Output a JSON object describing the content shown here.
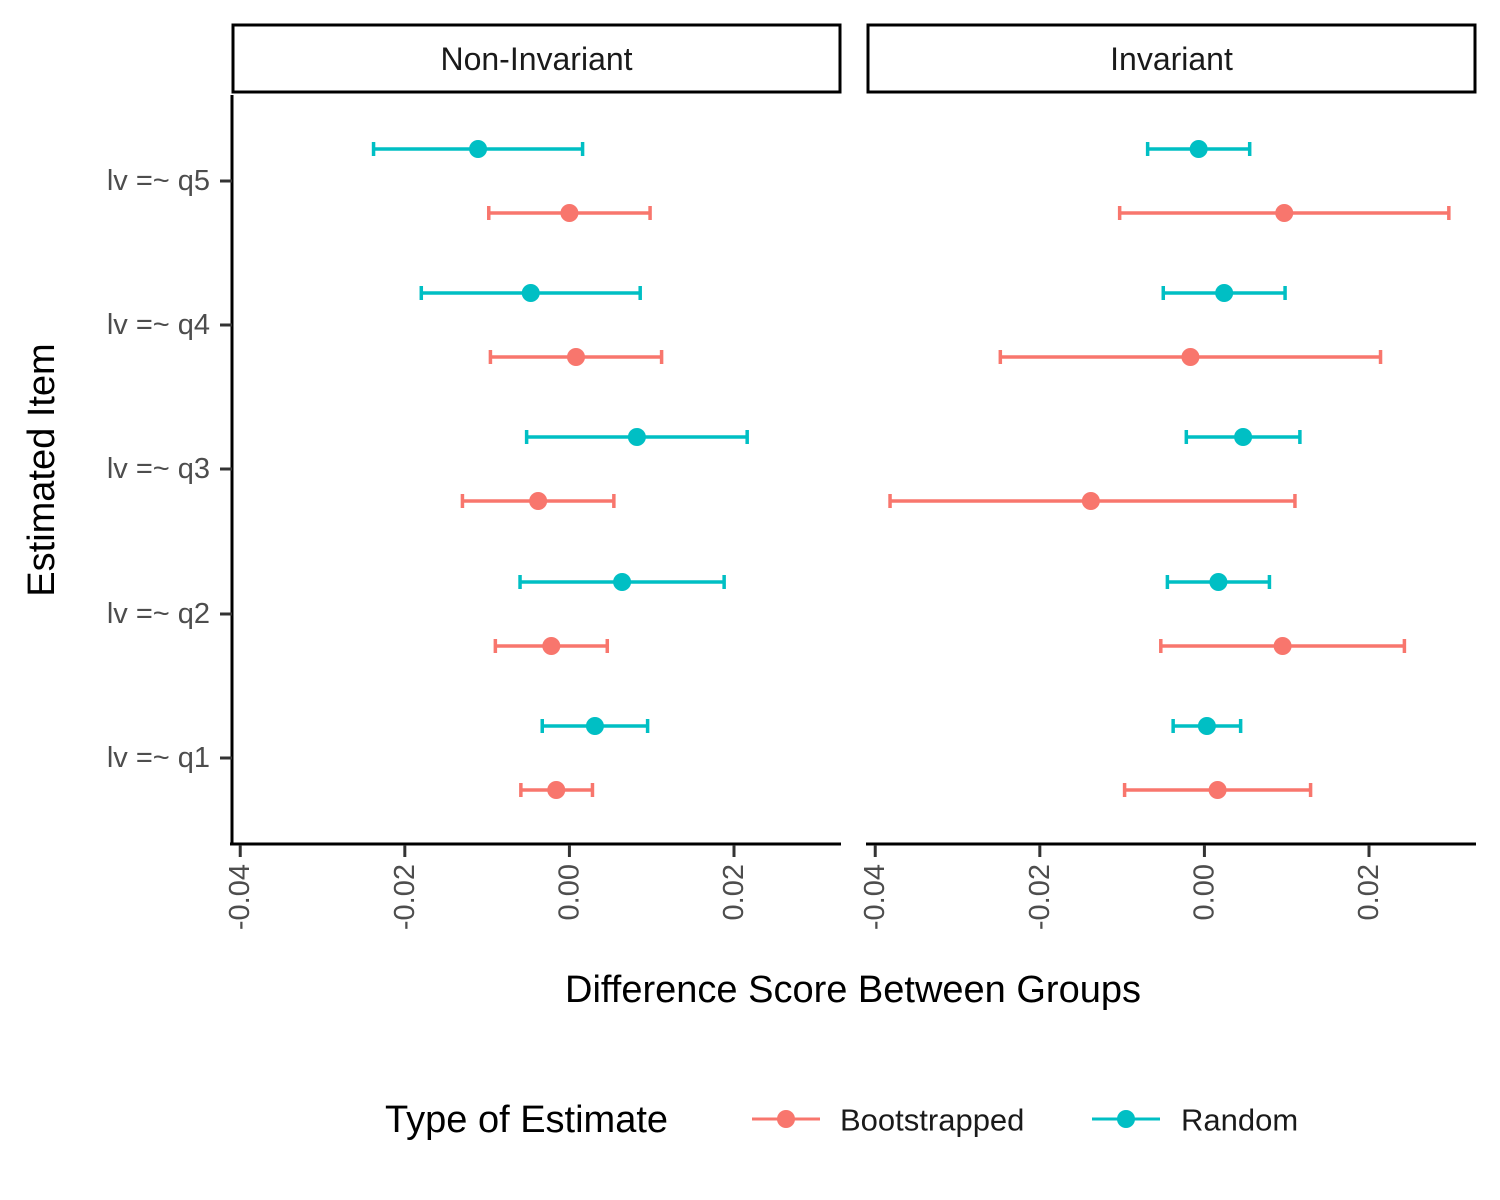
{
  "chart_data": {
    "type": "scatter",
    "subtype": "pointrange",
    "facets": [
      "Non-Invariant",
      "Invariant"
    ],
    "categories": [
      "lv =~ q1",
      "lv =~ q2",
      "lv =~ q3",
      "lv =~ q4",
      "lv =~ q5"
    ],
    "xlabel": "Difference Score Between Groups",
    "ylabel": "Estimated Item",
    "xlim": [
      -0.041,
      0.033
    ],
    "xticks": [
      -0.04,
      -0.02,
      0.0,
      0.02
    ],
    "xtick_labels": [
      "-0.04",
      "-0.02",
      "0.00",
      "0.02"
    ],
    "legend": {
      "title": "Type of Estimate",
      "position": "bottom",
      "entries": [
        "Bootstrapped",
        "Random"
      ]
    },
    "series": [
      {
        "name": "Bootstrapped",
        "color": "#F8766D",
        "data": {
          "Non-Invariant": [
            {
              "item": "lv =~ q1",
              "est": -0.0016,
              "lo": -0.0059,
              "hi": 0.0028
            },
            {
              "item": "lv =~ q2",
              "est": -0.0022,
              "lo": -0.009,
              "hi": 0.0046
            },
            {
              "item": "lv =~ q3",
              "est": -0.0038,
              "lo": -0.013,
              "hi": 0.0054
            },
            {
              "item": "lv =~ q4",
              "est": 0.0008,
              "lo": -0.0096,
              "hi": 0.0112
            },
            {
              "item": "lv =~ q5",
              "est": 0.0,
              "lo": -0.0098,
              "hi": 0.0098
            }
          ],
          "Invariant": [
            {
              "item": "lv =~ q1",
              "est": 0.0016,
              "lo": -0.0097,
              "hi": 0.0129
            },
            {
              "item": "lv =~ q2",
              "est": 0.0095,
              "lo": -0.0053,
              "hi": 0.0243
            },
            {
              "item": "lv =~ q3",
              "est": -0.0138,
              "lo": -0.0382,
              "hi": 0.011
            },
            {
              "item": "lv =~ q4",
              "est": -0.0017,
              "lo": -0.0248,
              "hi": 0.0214
            },
            {
              "item": "lv =~ q5",
              "est": 0.0097,
              "lo": -0.0103,
              "hi": 0.0297
            }
          ]
        }
      },
      {
        "name": "Random",
        "color": "#00BFC4",
        "data": {
          "Non-Invariant": [
            {
              "item": "lv =~ q1",
              "est": 0.0031,
              "lo": -0.0033,
              "hi": 0.0095
            },
            {
              "item": "lv =~ q2",
              "est": 0.0064,
              "lo": -0.006,
              "hi": 0.0188
            },
            {
              "item": "lv =~ q3",
              "est": 0.0082,
              "lo": -0.0052,
              "hi": 0.0216
            },
            {
              "item": "lv =~ q4",
              "est": -0.0047,
              "lo": -0.018,
              "hi": 0.0086
            },
            {
              "item": "lv =~ q5",
              "est": -0.0111,
              "lo": -0.0238,
              "hi": 0.0016
            }
          ],
          "Invariant": [
            {
              "item": "lv =~ q1",
              "est": 0.0003,
              "lo": -0.0038,
              "hi": 0.0044
            },
            {
              "item": "lv =~ q2",
              "est": 0.0017,
              "lo": -0.0045,
              "hi": 0.0079
            },
            {
              "item": "lv =~ q3",
              "est": 0.0047,
              "lo": -0.0022,
              "hi": 0.0116
            },
            {
              "item": "lv =~ q4",
              "est": 0.0024,
              "lo": -0.005,
              "hi": 0.0098
            },
            {
              "item": "lv =~ q5",
              "est": -0.0007,
              "lo": -0.0069,
              "hi": 0.0055
            }
          ]
        }
      }
    ]
  }
}
